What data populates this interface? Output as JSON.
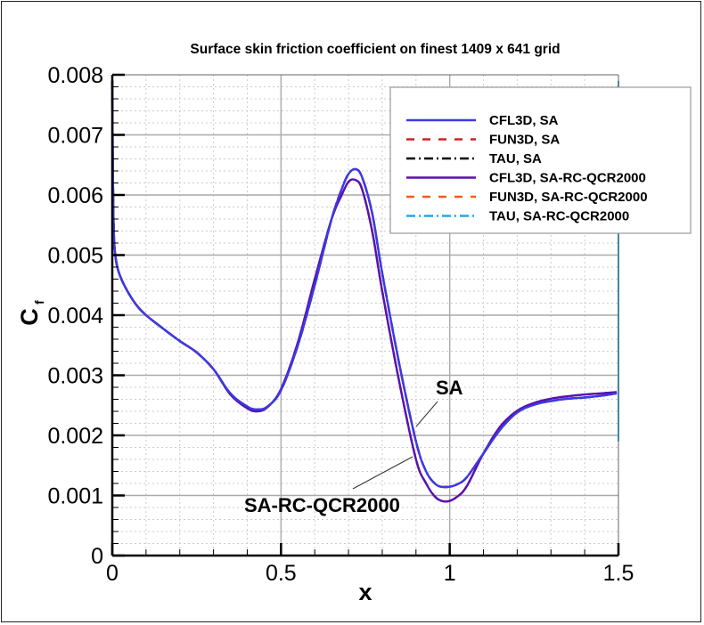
{
  "chart_data": {
    "type": "line",
    "title": "Surface skin friction coefficient on finest 1409 x 641 grid",
    "xlabel": "x",
    "ylabel": "C_f",
    "ylabel_main": "C",
    "ylabel_sub": "f",
    "xlim": [
      0,
      1.5
    ],
    "ylim": [
      0,
      0.008
    ],
    "grid": true,
    "legend_position": "upper right",
    "x_ticks": [
      0,
      0.5,
      1,
      1.5
    ],
    "x_tick_labels": [
      "0",
      "0.5",
      "1",
      "1.5"
    ],
    "y_ticks": [
      0,
      0.001,
      0.002,
      0.003,
      0.004,
      0.005,
      0.006,
      0.007,
      0.008
    ],
    "y_tick_labels": [
      "0",
      "0.001",
      "0.002",
      "0.003",
      "0.004",
      "0.005",
      "0.006",
      "0.007",
      "0.008"
    ],
    "annotations": [
      {
        "text": "SA",
        "x": 0.99,
        "y": 0.0028
      },
      {
        "text": "SA-RC-QCR2000",
        "x": 0.62,
        "y": 0.00075
      }
    ],
    "x": [
      0.0,
      0.002,
      0.005,
      0.01,
      0.02,
      0.04,
      0.07,
      0.1,
      0.15,
      0.2,
      0.25,
      0.3,
      0.35,
      0.4,
      0.43,
      0.46,
      0.5,
      0.55,
      0.6,
      0.65,
      0.68,
      0.7,
      0.72,
      0.74,
      0.77,
      0.8,
      0.85,
      0.9,
      0.93,
      0.96,
      0.99,
      1.02,
      1.05,
      1.1,
      1.15,
      1.2,
      1.25,
      1.3,
      1.35,
      1.4,
      1.45,
      1.495
    ],
    "series": [
      {
        "name": "CFL3D, SA",
        "color": "#3a3ae8",
        "dash": "",
        "group": "SA",
        "values": [
          0.0079,
          0.0062,
          0.0053,
          0.00495,
          0.0047,
          0.00445,
          0.00418,
          0.004,
          0.00378,
          0.00357,
          0.00338,
          0.0031,
          0.0027,
          0.00248,
          0.00243,
          0.00248,
          0.00275,
          0.0035,
          0.0045,
          0.0056,
          0.0061,
          0.00635,
          0.00643,
          0.0063,
          0.0057,
          0.0047,
          0.0032,
          0.0019,
          0.0014,
          0.00118,
          0.00114,
          0.00118,
          0.0013,
          0.0017,
          0.0021,
          0.00238,
          0.00251,
          0.00257,
          0.00261,
          0.00263,
          0.00266,
          0.0027
        ]
      },
      {
        "name": "FUN3D, SA",
        "color": "#d42020",
        "dash": "9,9",
        "group": "SA",
        "values": [
          0.0079,
          0.0062,
          0.0053,
          0.00495,
          0.0047,
          0.00445,
          0.00418,
          0.004,
          0.00378,
          0.00357,
          0.00338,
          0.0031,
          0.0027,
          0.00248,
          0.00243,
          0.00248,
          0.00275,
          0.0035,
          0.0045,
          0.0056,
          0.0061,
          0.00635,
          0.00643,
          0.0063,
          0.0057,
          0.0047,
          0.0032,
          0.0019,
          0.0014,
          0.00118,
          0.00114,
          0.00118,
          0.0013,
          0.0017,
          0.0021,
          0.00238,
          0.00251,
          0.00257,
          0.00261,
          0.00263,
          0.00266,
          0.0027
        ]
      },
      {
        "name": "TAU, SA",
        "color": "#000000",
        "dash": "10,4,2,4",
        "group": "SA",
        "values": [
          0.0079,
          0.0062,
          0.0053,
          0.00495,
          0.0047,
          0.00445,
          0.00418,
          0.004,
          0.00378,
          0.00357,
          0.00338,
          0.0031,
          0.0027,
          0.00248,
          0.00243,
          0.00248,
          0.00275,
          0.0035,
          0.0045,
          0.0056,
          0.0061,
          0.00635,
          0.00643,
          0.0063,
          0.0057,
          0.0047,
          0.0032,
          0.0019,
          0.0014,
          0.00118,
          0.00114,
          0.00118,
          0.0013,
          0.0017,
          0.0021,
          0.00238,
          0.00251,
          0.00257,
          0.00261,
          0.00263,
          0.00266,
          0.0027
        ]
      },
      {
        "name": "CFL3D, SA-RC-QCR2000",
        "color": "#5a10b0",
        "dash": "",
        "group": "QCR",
        "values": [
          0.0079,
          0.0062,
          0.0053,
          0.00495,
          0.0047,
          0.00445,
          0.00418,
          0.004,
          0.00378,
          0.00357,
          0.00338,
          0.0031,
          0.00268,
          0.00245,
          0.0024,
          0.00247,
          0.00277,
          0.00355,
          0.0046,
          0.0056,
          0.006,
          0.00622,
          0.00625,
          0.0061,
          0.0054,
          0.0044,
          0.0029,
          0.0016,
          0.0012,
          0.00096,
          0.0009,
          0.00097,
          0.00115,
          0.0017,
          0.00215,
          0.00241,
          0.00254,
          0.00261,
          0.00265,
          0.00268,
          0.0027,
          0.00272
        ]
      },
      {
        "name": "FUN3D, SA-RC-QCR2000",
        "color": "#f06010",
        "dash": "9,9",
        "group": "QCR",
        "values": [
          0.0079,
          0.0062,
          0.0053,
          0.00495,
          0.0047,
          0.00445,
          0.00418,
          0.004,
          0.00378,
          0.00357,
          0.00338,
          0.0031,
          0.00268,
          0.00245,
          0.0024,
          0.00247,
          0.00277,
          0.00355,
          0.0046,
          0.0056,
          0.006,
          0.00622,
          0.00625,
          0.0061,
          0.0054,
          0.0044,
          0.0029,
          0.0016,
          0.0012,
          0.00096,
          0.0009,
          0.00097,
          0.00115,
          0.0017,
          0.00215,
          0.00241,
          0.00254,
          0.00261,
          0.00265,
          0.00268,
          0.0027,
          0.00272
        ]
      },
      {
        "name": "TAU, SA-RC-QCR2000",
        "color": "#20a8e8",
        "dash": "10,4,2,4",
        "group": "QCR",
        "values": [
          0.0079,
          0.0062,
          0.0053,
          0.00495,
          0.0047,
          0.00445,
          0.00418,
          0.004,
          0.00378,
          0.00357,
          0.00338,
          0.0031,
          0.00268,
          0.00245,
          0.0024,
          0.00247,
          0.00277,
          0.00355,
          0.0046,
          0.0056,
          0.006,
          0.00622,
          0.00625,
          0.0061,
          0.0054,
          0.0044,
          0.0029,
          0.0016,
          0.0012,
          0.00096,
          0.0009,
          0.00097,
          0.00115,
          0.0017,
          0.00215,
          0.00241,
          0.00254,
          0.00261,
          0.00265,
          0.00268,
          0.0027,
          0.00272
        ]
      }
    ],
    "trailing_edge_spike": {
      "x": 1.5,
      "y_top": 0.0079,
      "y_bottom": 0.0019
    }
  }
}
